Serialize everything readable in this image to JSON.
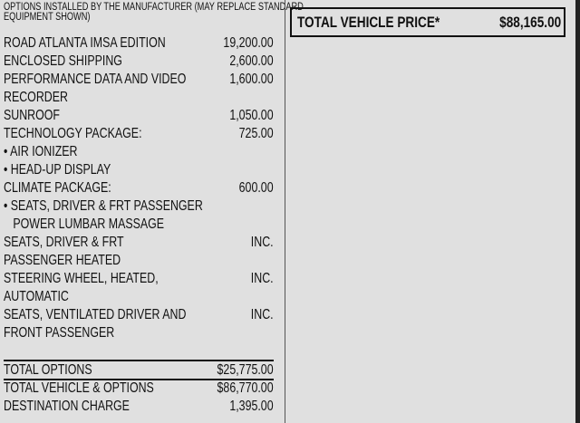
{
  "header": "OPTIONS INSTALLED BY THE MANUFACTURER (MAY REPLACE STANDARD EQUIPMENT SHOWN)",
  "options": [
    {
      "label": "ROAD ATLANTA IMSA EDITION",
      "amount": "19,200.00"
    },
    {
      "label": "ENCLOSED SHIPPING",
      "amount": "2,600.00"
    },
    {
      "label": "PERFORMANCE DATA AND VIDEO",
      "amount": "1,600.00"
    },
    {
      "label": "RECORDER",
      "amount": ""
    },
    {
      "label": "SUNROOF",
      "amount": "1,050.00"
    },
    {
      "label": "TECHNOLOGY PACKAGE:",
      "amount": "725.00"
    },
    {
      "label": "• AIR IONIZER",
      "amount": ""
    },
    {
      "label": "• HEAD-UP DISPLAY",
      "amount": ""
    },
    {
      "label": "CLIMATE PACKAGE:",
      "amount": "600.00"
    },
    {
      "label": "• SEATS, DRIVER & FRT PASSENGER",
      "amount": ""
    },
    {
      "label": "   POWER LUMBAR MASSAGE",
      "amount": ""
    },
    {
      "label": "SEATS, DRIVER & FRT",
      "amount": "INC."
    },
    {
      "label": "PASSENGER HEATED",
      "amount": ""
    },
    {
      "label": "STEERING WHEEL, HEATED,",
      "amount": "INC."
    },
    {
      "label": "AUTOMATIC",
      "amount": ""
    },
    {
      "label": "SEATS, VENTILATED DRIVER AND",
      "amount": "INC."
    },
    {
      "label": "FRONT PASSENGER",
      "amount": ""
    }
  ],
  "totals": {
    "total_options_label": "TOTAL OPTIONS",
    "total_options": "$25,775.00",
    "total_vehicle_label": "TOTAL VEHICLE & OPTIONS",
    "total_vehicle": "$86,770.00",
    "destination_label": "DESTINATION CHARGE",
    "destination": "1,395.00"
  },
  "price_box": {
    "label": "TOTAL VEHICLE PRICE*",
    "value": "$88,165.00"
  }
}
